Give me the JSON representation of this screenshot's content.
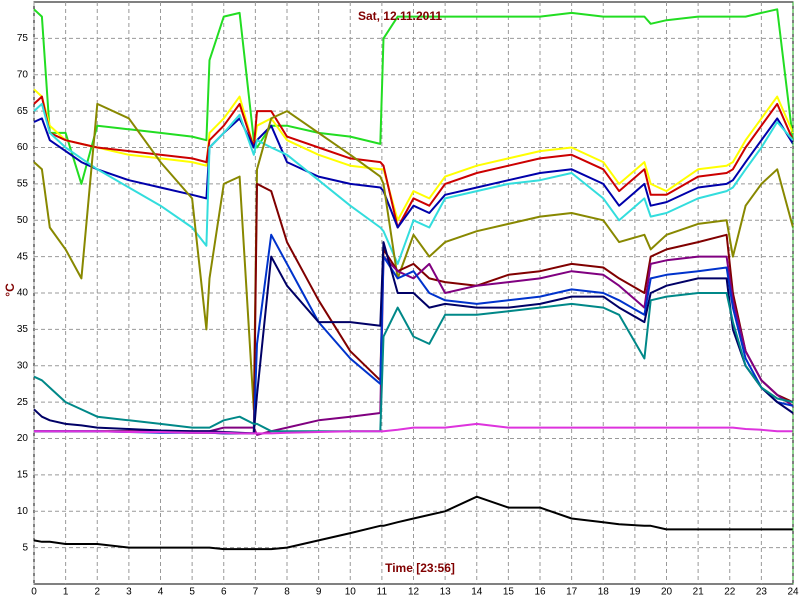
{
  "chart_data": {
    "type": "line",
    "title": "Sat, 12.11.2011",
    "x_label": "Time [23:56]",
    "y_label": "°C",
    "xlim": [
      0,
      24
    ],
    "ylim": [
      0,
      80
    ],
    "xticks": [
      0,
      1,
      2,
      3,
      4,
      5,
      6,
      7,
      8,
      9,
      10,
      11,
      12,
      13,
      14,
      15,
      16,
      17,
      18,
      19,
      20,
      21,
      22,
      23,
      24
    ],
    "yticks": [
      5,
      10,
      15,
      20,
      25,
      30,
      35,
      40,
      45,
      50,
      55,
      60,
      65,
      70,
      75
    ],
    "grid": true,
    "x": [
      0,
      0.25,
      0.5,
      1,
      1.5,
      2,
      3,
      4,
      5,
      5.45,
      5.55,
      6,
      6.5,
      6.95,
      7.05,
      7.5,
      8,
      9,
      10,
      10.95,
      11.05,
      11.5,
      12,
      12.5,
      13,
      14,
      15,
      16,
      17,
      18,
      18.5,
      19.3,
      19.5,
      20,
      21,
      21.9,
      22.1,
      22.5,
      23,
      23.5,
      24
    ],
    "series": [
      {
        "color": "#22dd22",
        "values": [
          79,
          78,
          62,
          62,
          55,
          63,
          62.5,
          62,
          61.5,
          61,
          72,
          78,
          78.5,
          61,
          60,
          63,
          63,
          62,
          61.5,
          60.5,
          75,
          78,
          78,
          78,
          78,
          78,
          78,
          78,
          78.5,
          78,
          78,
          78,
          77,
          77.5,
          78,
          78,
          78,
          78,
          78.5,
          79,
          61
        ]
      },
      {
        "color": "#ffff00",
        "values": [
          68,
          67,
          63,
          61,
          60.5,
          60,
          59,
          58.5,
          58,
          57.5,
          62,
          64,
          67,
          60,
          63,
          64,
          61,
          59,
          57.5,
          57,
          57,
          50,
          54,
          53,
          56,
          57.5,
          58.5,
          59.5,
          60,
          58,
          55,
          58,
          55,
          54,
          57,
          57.5,
          58,
          61,
          64,
          67,
          62
        ]
      },
      {
        "color": "#cc0000",
        "values": [
          66,
          67,
          62,
          61,
          60.5,
          60,
          59.5,
          59,
          58.5,
          58,
          61,
          63,
          66,
          60,
          65,
          65,
          61.5,
          60,
          58.5,
          58,
          57.5,
          49,
          53,
          52,
          55,
          56.5,
          57.5,
          58.5,
          59,
          57,
          54,
          57,
          53.5,
          53.5,
          56,
          56.5,
          57,
          60,
          63,
          66,
          61
        ]
      },
      {
        "color": "#0000aa",
        "values": [
          63.5,
          64,
          61,
          59.5,
          58,
          57,
          55.5,
          54.5,
          53.5,
          53,
          60,
          62,
          64,
          60,
          61,
          63,
          58,
          56,
          55,
          54.5,
          54,
          49,
          52,
          51,
          53.5,
          54.5,
          55.5,
          56.5,
          57,
          55,
          52,
          55,
          52,
          52.5,
          54.5,
          55,
          55.5,
          58,
          61,
          64,
          60.5
        ]
      },
      {
        "color": "#33dddd",
        "values": [
          65,
          66,
          62,
          60,
          58.5,
          57,
          54.5,
          52,
          49,
          46.5,
          60,
          62,
          64.5,
          59,
          61,
          60,
          59,
          55.5,
          52,
          49,
          48.5,
          44,
          50,
          49,
          53,
          54,
          55,
          55.5,
          56.5,
          53,
          50,
          53,
          50.5,
          51,
          53,
          54,
          54.5,
          57,
          60,
          63.5,
          61
        ]
      },
      {
        "color": "#888800",
        "values": [
          58,
          57,
          49,
          46,
          42,
          66,
          64,
          58,
          53,
          35,
          42,
          55,
          56,
          24,
          57,
          64,
          65,
          62,
          59,
          56,
          55,
          42,
          48,
          45,
          47,
          48.5,
          49.5,
          50.5,
          51,
          50,
          47,
          48,
          46,
          48,
          49.5,
          50,
          45,
          52,
          55,
          57,
          49
        ]
      },
      {
        "color": "#800000",
        "values": [
          21,
          21,
          21,
          21,
          21,
          21,
          21,
          20.9,
          20.8,
          20.8,
          20.8,
          20.7,
          20.7,
          20.7,
          55,
          54,
          47,
          39,
          32,
          28,
          46,
          43,
          44,
          42,
          41.5,
          41,
          42.5,
          43,
          44,
          43.5,
          42,
          40,
          45,
          46,
          47,
          48,
          40,
          32,
          28,
          26,
          25
        ]
      },
      {
        "color": "#800080",
        "values": [
          21,
          21,
          21,
          21,
          21,
          21,
          21,
          21,
          21,
          21,
          21,
          21.5,
          21.5,
          21.5,
          20.5,
          21,
          21.5,
          22.5,
          23,
          23.5,
          45,
          43,
          42,
          44,
          40,
          41,
          41.5,
          42,
          43,
          42.5,
          41,
          38,
          44,
          44.5,
          45,
          45,
          39,
          32,
          28,
          26,
          24.5
        ]
      },
      {
        "color": "#0033cc",
        "values": [
          21,
          21,
          21,
          21,
          21,
          21,
          20.9,
          20.8,
          20.8,
          20.8,
          20.8,
          20.7,
          20.7,
          20.7,
          33,
          48,
          44,
          36,
          31,
          27.5,
          45,
          42,
          43,
          40,
          39,
          38.5,
          39,
          39.5,
          40.5,
          40,
          39,
          37,
          42,
          42.5,
          43,
          43.5,
          38,
          31,
          27,
          25,
          24.5
        ]
      },
      {
        "color": "#000066",
        "values": [
          24,
          23,
          22.5,
          22,
          21.8,
          21.5,
          21.3,
          21.1,
          21,
          21,
          21,
          20.9,
          20.8,
          20.7,
          26,
          45,
          41,
          36,
          36,
          35.5,
          47,
          40,
          40,
          38,
          38.5,
          38,
          38,
          38.5,
          39.5,
          39.5,
          38,
          36,
          40,
          41,
          42,
          42,
          35,
          30,
          27,
          25,
          23.5
        ]
      },
      {
        "color": "#008888",
        "values": [
          28.5,
          28,
          27,
          25,
          24,
          23,
          22.5,
          22,
          21.5,
          21.5,
          21.5,
          22.5,
          23,
          22,
          22,
          21,
          21,
          21,
          21,
          21,
          34,
          38,
          34,
          33,
          37,
          37,
          37.5,
          38,
          38.5,
          38,
          37,
          31,
          39,
          39.5,
          40,
          40,
          36,
          30,
          27,
          25.5,
          25
        ]
      },
      {
        "color": "#dd33dd",
        "values": [
          21,
          21,
          21,
          21,
          21,
          21,
          20.9,
          20.9,
          20.8,
          20.8,
          20.8,
          20.8,
          20.7,
          20.7,
          20.7,
          20.7,
          20.8,
          20.9,
          21,
          21,
          21,
          21.2,
          21.5,
          21.5,
          21.5,
          22,
          21.5,
          21.5,
          21.5,
          21.5,
          21.5,
          21.5,
          21.5,
          21.5,
          21.5,
          21.5,
          21.5,
          21.3,
          21.2,
          21,
          21
        ]
      },
      {
        "color": "#000000",
        "values": [
          6,
          5.8,
          5.8,
          5.5,
          5.5,
          5.5,
          5,
          5,
          5,
          5,
          5,
          4.8,
          4.8,
          4.8,
          4.8,
          4.8,
          5,
          6,
          7,
          8,
          8,
          8.5,
          9,
          9.5,
          10,
          12,
          10.5,
          10.5,
          9,
          8.5,
          8.2,
          8,
          8,
          7.5,
          7.5,
          7.5,
          7.5,
          7.5,
          7.5,
          7.5,
          7.5
        ]
      }
    ]
  }
}
